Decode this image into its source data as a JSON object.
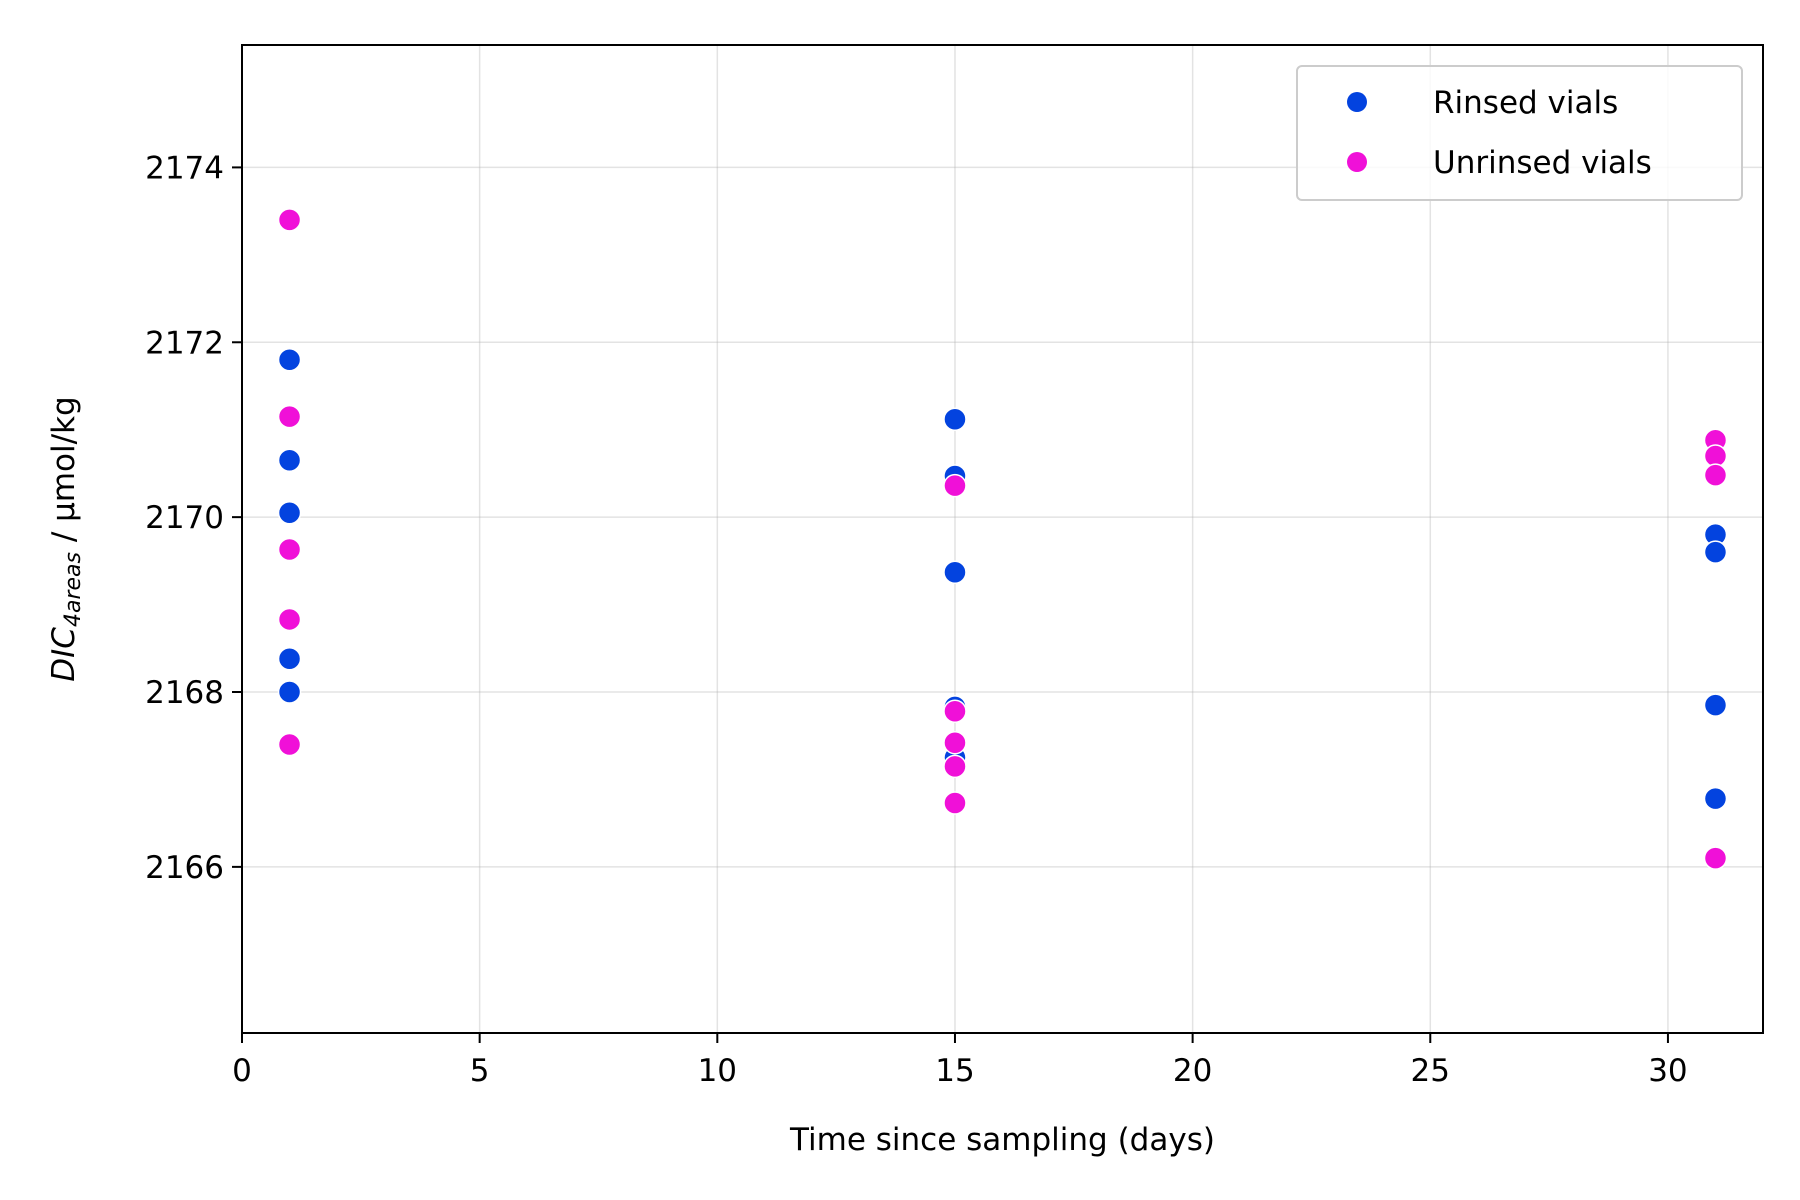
{
  "chart_data": {
    "type": "scatter",
    "title": "",
    "xlabel": "Time since sampling (days)",
    "ylabel": {
      "base": "DIC",
      "subscript": "4areas",
      "suffix": " / μmol/kg"
    },
    "xlim": [
      0,
      32
    ],
    "ylim": [
      2164.1,
      2175.4
    ],
    "x_ticks": [
      0,
      5,
      10,
      15,
      20,
      25,
      30
    ],
    "y_ticks": [
      2166,
      2168,
      2170,
      2172,
      2174
    ],
    "grid": true,
    "legend_position": "top-right",
    "series": [
      {
        "name": "Rinsed vials",
        "color": "#0343df",
        "points": [
          {
            "x": 1,
            "y": 2171.8
          },
          {
            "x": 1,
            "y": 2170.65
          },
          {
            "x": 1,
            "y": 2170.05
          },
          {
            "x": 1,
            "y": 2168.38
          },
          {
            "x": 1,
            "y": 2168.0
          },
          {
            "x": 15,
            "y": 2171.12
          },
          {
            "x": 15,
            "y": 2170.47
          },
          {
            "x": 15,
            "y": 2169.37
          },
          {
            "x": 15,
            "y": 2167.83
          },
          {
            "x": 15,
            "y": 2167.25
          },
          {
            "x": 31,
            "y": 2169.8
          },
          {
            "x": 31,
            "y": 2169.6
          },
          {
            "x": 31,
            "y": 2167.85
          },
          {
            "x": 31,
            "y": 2166.78
          }
        ]
      },
      {
        "name": "Unrinsed vials",
        "color": "#f010d8",
        "points": [
          {
            "x": 1,
            "y": 2173.4
          },
          {
            "x": 1,
            "y": 2171.15
          },
          {
            "x": 1,
            "y": 2169.63
          },
          {
            "x": 1,
            "y": 2168.83
          },
          {
            "x": 1,
            "y": 2167.4
          },
          {
            "x": 15,
            "y": 2170.36
          },
          {
            "x": 15,
            "y": 2167.78
          },
          {
            "x": 15,
            "y": 2167.42
          },
          {
            "x": 15,
            "y": 2167.15
          },
          {
            "x": 15,
            "y": 2166.73
          },
          {
            "x": 31,
            "y": 2170.88
          },
          {
            "x": 31,
            "y": 2170.7
          },
          {
            "x": 31,
            "y": 2170.48
          },
          {
            "x": 31,
            "y": 2166.1
          }
        ]
      }
    ]
  }
}
